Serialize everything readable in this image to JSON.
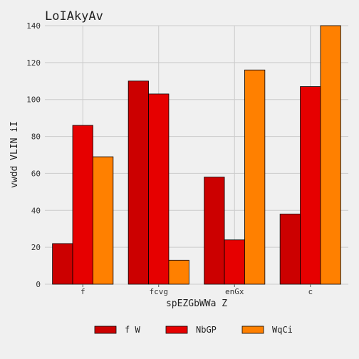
{
  "chart_data": {
    "type": "bar",
    "title": "LoIAkyAv",
    "xlabel": "spEZGbWWa Z",
    "ylabel": "vwdd  VLIN iI",
    "categories": [
      "f",
      "fcvg",
      "enGx",
      "c"
    ],
    "ylim": [
      0,
      140
    ],
    "yticks": [
      0,
      20,
      40,
      60,
      80,
      100,
      120,
      140
    ],
    "grid": true,
    "legend_position": "bottom",
    "series": [
      {
        "name": "f W",
        "color": "#cc0000",
        "values": [
          22,
          110,
          58,
          38
        ]
      },
      {
        "name": "NbGP",
        "color": "#e60000",
        "values": [
          86,
          103,
          24,
          107
        ]
      },
      {
        "name": "WqCi",
        "color": "#ff8000",
        "values": [
          69,
          13,
          116,
          140
        ]
      }
    ]
  }
}
